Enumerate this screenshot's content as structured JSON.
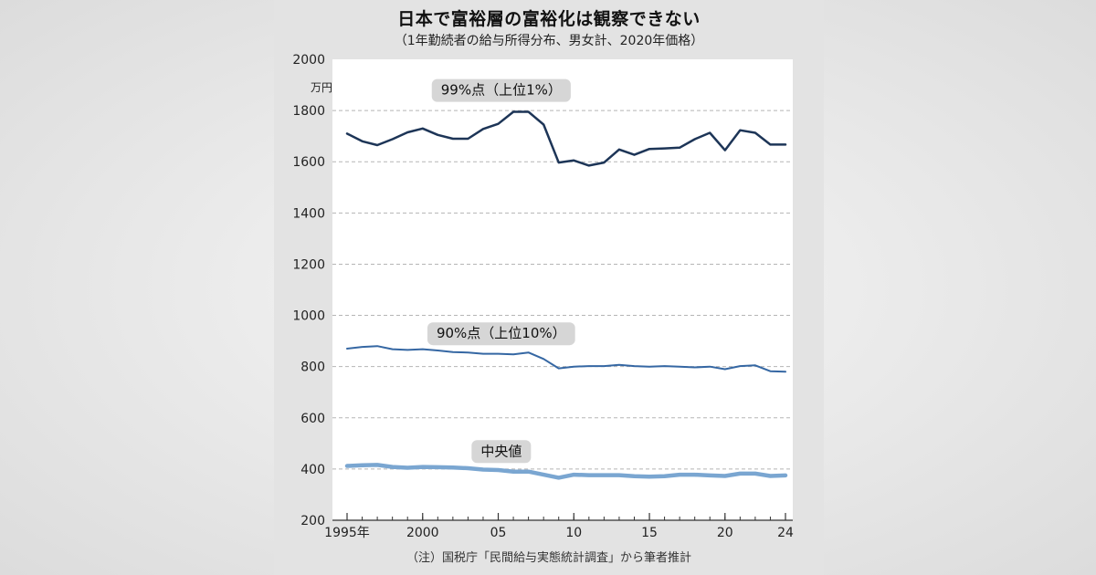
{
  "title": "日本で富裕層の富裕化は観察できない",
  "subtitle": "（1年勤続者の給与所得分布、男女計、2020年価格）",
  "note": "（注）国税庁「民間給与実態統計調査」から筆者推計",
  "chart_data": {
    "type": "line",
    "unit": "万円",
    "ylim": [
      200,
      2000
    ],
    "yticks": [
      200,
      400,
      600,
      800,
      1000,
      1200,
      1400,
      1600,
      1800,
      2000
    ],
    "xlim": [
      1995,
      2024
    ],
    "xticks": [
      {
        "value": 1995,
        "label": "1995年"
      },
      {
        "value": 2000,
        "label": "2000"
      },
      {
        "value": 2005,
        "label": "05"
      },
      {
        "value": 2010,
        "label": "10"
      },
      {
        "value": 2015,
        "label": "15"
      },
      {
        "value": 2020,
        "label": "20"
      },
      {
        "value": 2024,
        "label": "24"
      }
    ],
    "x": [
      1995,
      1996,
      1997,
      1998,
      1999,
      2000,
      2001,
      2002,
      2003,
      2004,
      2005,
      2006,
      2007,
      2008,
      2009,
      2010,
      2011,
      2012,
      2013,
      2014,
      2015,
      2016,
      2017,
      2018,
      2019,
      2020,
      2021,
      2022,
      2023,
      2024
    ],
    "series": [
      {
        "name": "99%点（上位1%）",
        "color": "#1d3557",
        "width": 2.5,
        "values": [
          1710,
          1680,
          1665,
          1688,
          1715,
          1730,
          1705,
          1690,
          1690,
          1728,
          1748,
          1795,
          1795,
          1745,
          1597,
          1605,
          1585,
          1597,
          1648,
          1627,
          1650,
          1652,
          1655,
          1688,
          1713,
          1645,
          1723,
          1713,
          1667,
          1667
        ]
      },
      {
        "name": "90%点（上位10%）",
        "color": "#3567a3",
        "width": 2,
        "values": [
          870,
          877,
          880,
          868,
          865,
          868,
          863,
          857,
          855,
          850,
          850,
          848,
          855,
          830,
          793,
          800,
          802,
          802,
          807,
          802,
          800,
          802,
          800,
          797,
          800,
          790,
          802,
          805,
          782,
          780
        ]
      },
      {
        "name": "中央値",
        "color": "#7aa6d1",
        "width": 4.5,
        "values": [
          412,
          415,
          416,
          408,
          405,
          408,
          407,
          406,
          403,
          398,
          396,
          390,
          390,
          378,
          366,
          378,
          376,
          376,
          376,
          372,
          370,
          372,
          378,
          378,
          375,
          373,
          382,
          382,
          373,
          375
        ]
      }
    ]
  }
}
